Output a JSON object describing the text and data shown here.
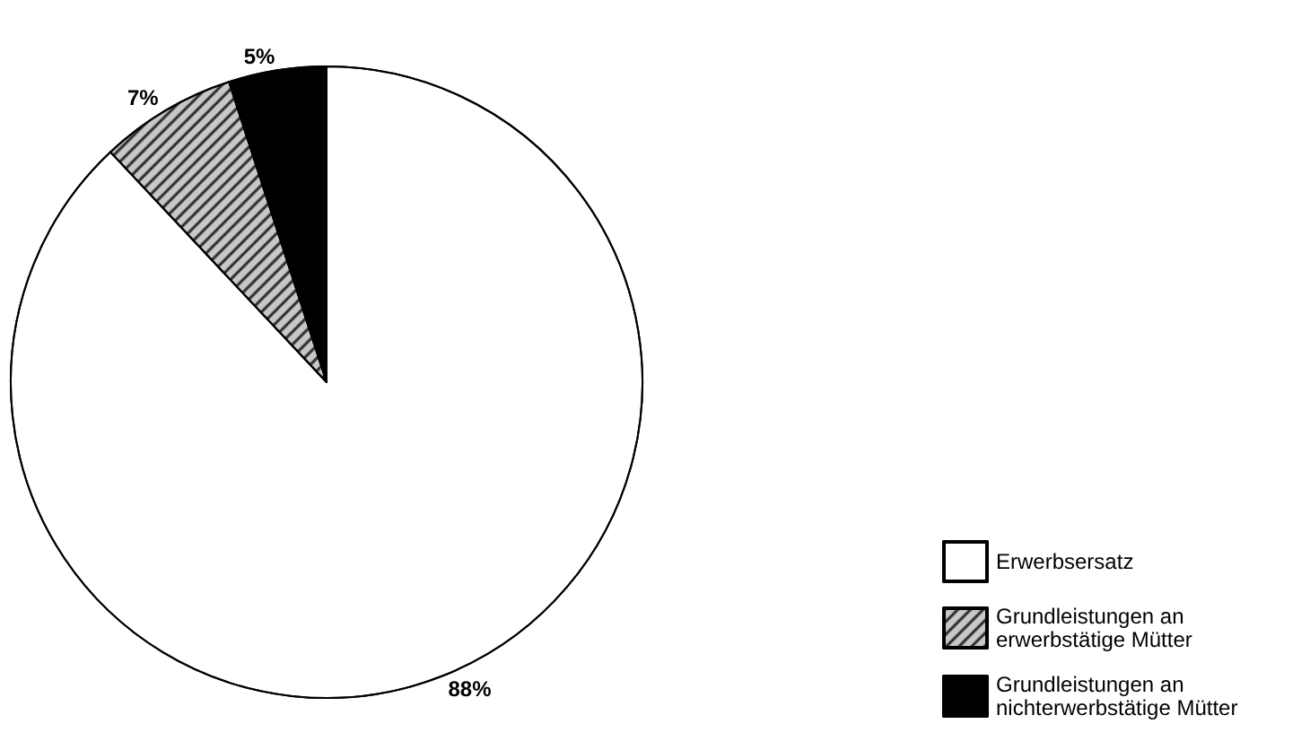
{
  "chart_data": {
    "type": "pie",
    "categories": [
      "Erwerbsersatz",
      "Grundleistungen an erwerbstätige Mütter",
      "Grundleistungen an nichterwerbstätige Mütter"
    ],
    "values": [
      88,
      7,
      5
    ],
    "value_labels": [
      "88%",
      "7%",
      "5%"
    ],
    "colors": [
      "#ffffff",
      "#c8c8c8",
      "#000000"
    ],
    "legend": "bottom right"
  }
}
